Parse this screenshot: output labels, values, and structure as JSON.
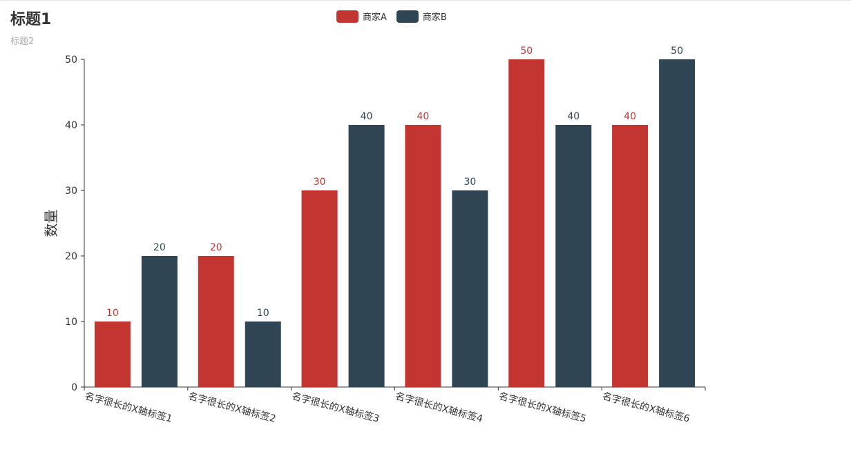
{
  "header": {
    "title": "标题1",
    "subtitle": "标题2"
  },
  "chart_data": {
    "type": "bar",
    "title": "标题1",
    "subtitle": "标题2",
    "xlabel": "",
    "ylabel": "数量",
    "ylim": [
      0,
      50
    ],
    "yticks": [
      0,
      10,
      20,
      30,
      40,
      50
    ],
    "grid": false,
    "legend_position": "top-center",
    "categories": [
      "名字很长的X轴标签1",
      "名字很长的X轴标签2",
      "名字很长的X轴标签3",
      "名字很长的X轴标签4",
      "名字很长的X轴标签5",
      "名字很长的X轴标签6"
    ],
    "series": [
      {
        "name": "商家A",
        "color": "#c23531",
        "values": [
          10,
          20,
          30,
          40,
          50,
          40
        ]
      },
      {
        "name": "商家B",
        "color": "#2f4554",
        "values": [
          20,
          10,
          40,
          30,
          40,
          50
        ]
      }
    ]
  }
}
